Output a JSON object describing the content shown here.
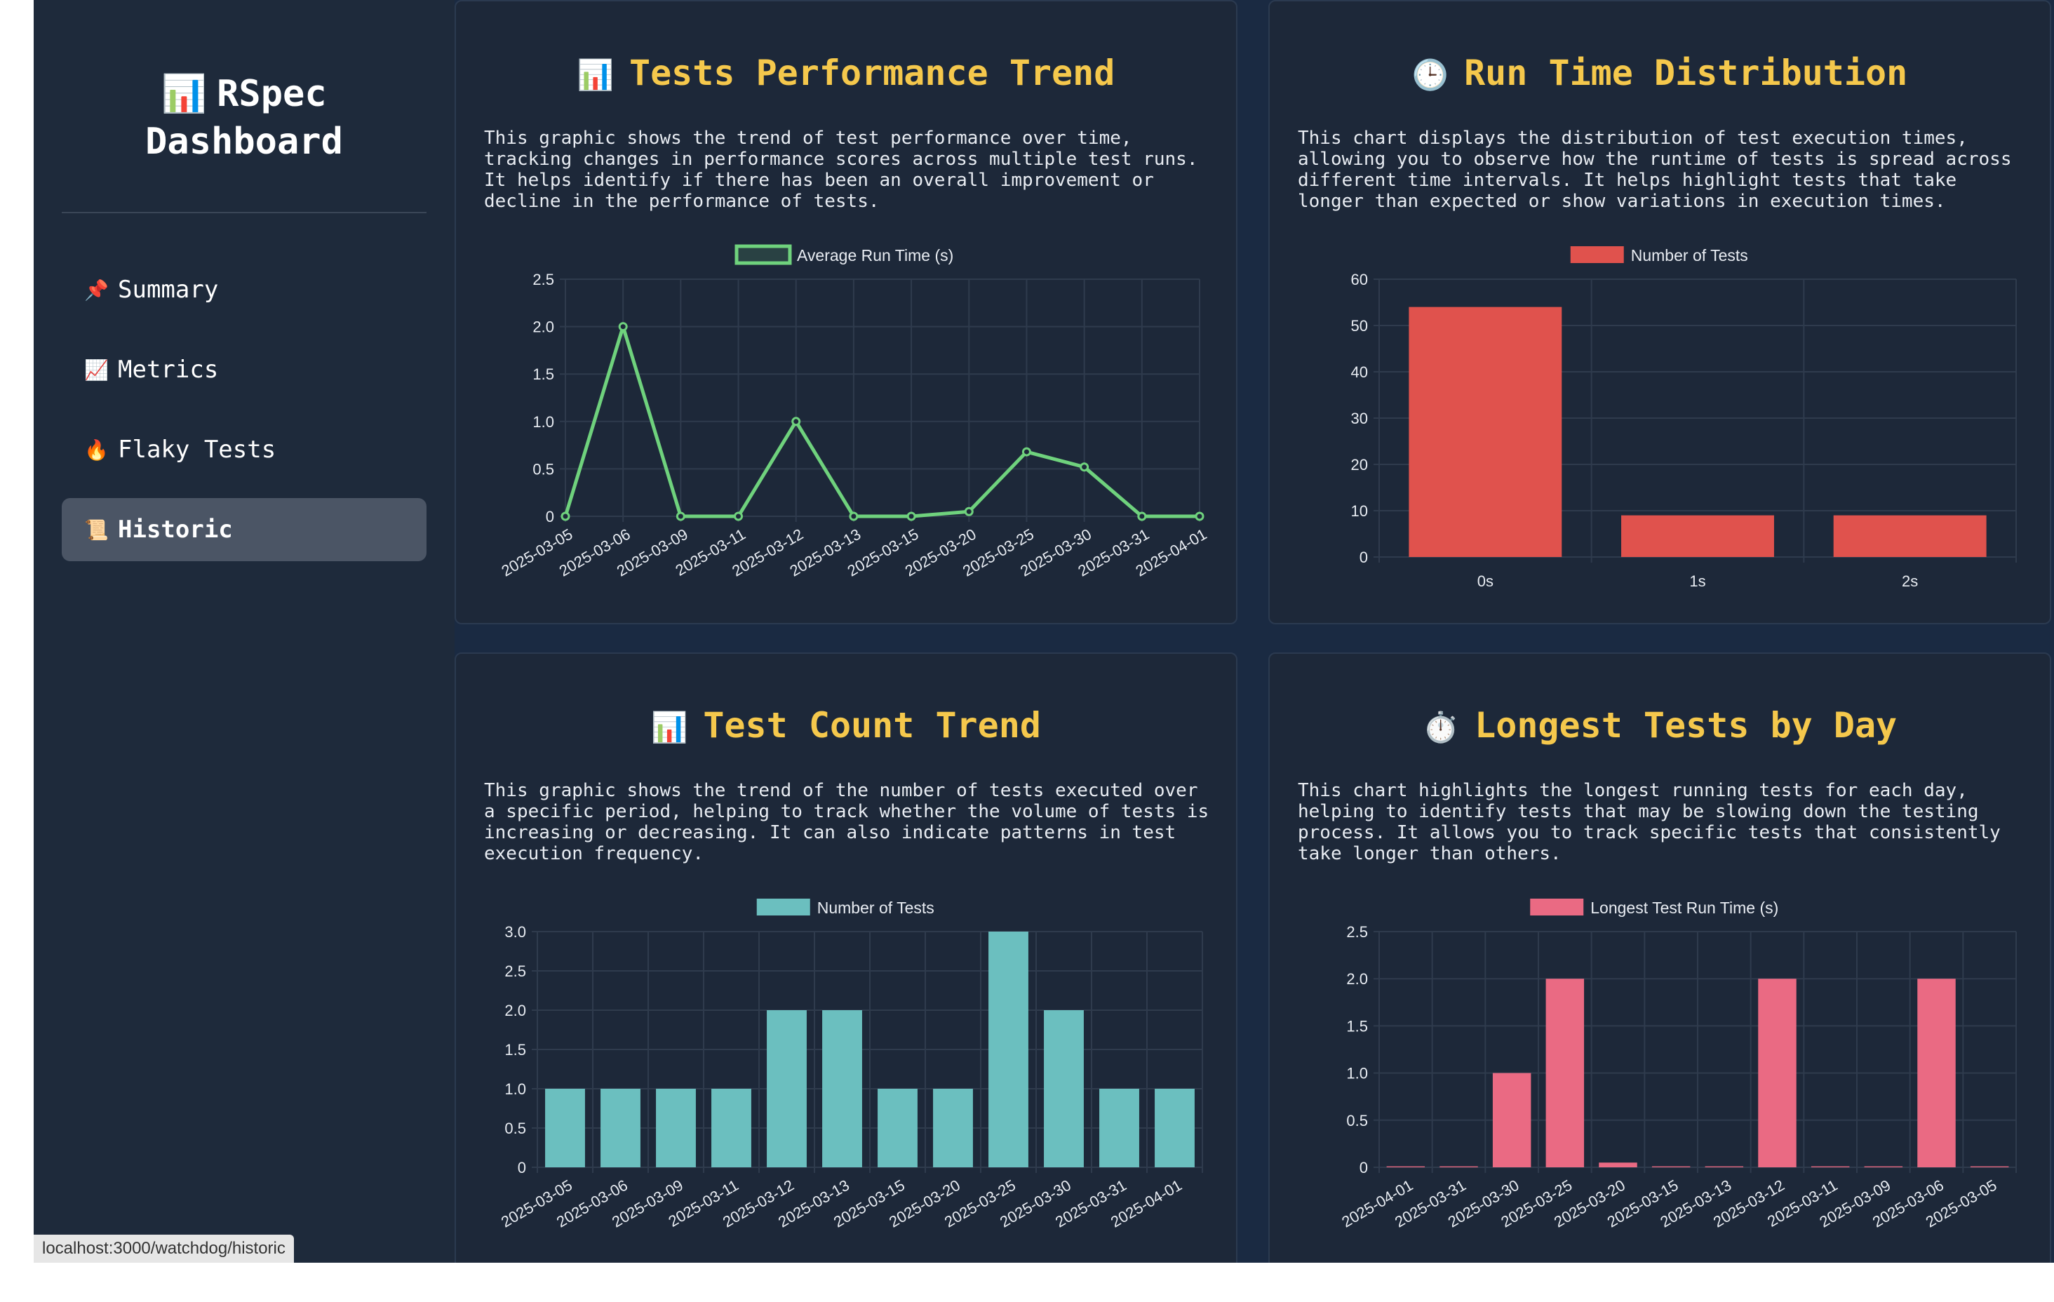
{
  "sidebar": {
    "brand_icon": "📊",
    "brand_line1": "RSpec",
    "brand_line2": "Dashboard",
    "items": [
      {
        "icon": "📌",
        "label": "Summary"
      },
      {
        "icon": "📈",
        "label": "Metrics"
      },
      {
        "icon": "🔥",
        "label": "Flaky Tests"
      },
      {
        "icon": "📜",
        "label": "Historic",
        "active": true
      }
    ]
  },
  "cards": {
    "perf": {
      "icon": "📊",
      "title": "Tests Performance Trend",
      "description": "This graphic shows the trend of test performance over time,\ntracking changes in performance scores across multiple test runs.\nIt helps identify if there has been an overall improvement or\ndecline in the performance of tests."
    },
    "dist": {
      "icon": "🕒",
      "title": "Run Time Distribution",
      "description": "This chart displays the distribution of test execution times,\nallowing you to observe how the runtime of tests is spread across\ndifferent time intervals. It helps highlight tests that take\nlonger than expected or show variations in execution times."
    },
    "count": {
      "icon": "📊",
      "title": "Test Count Trend",
      "description": "This graphic shows the trend of the number of tests executed over\na specific period, helping to track whether the volume of tests is\nincreasing or decreasing. It can also indicate patterns in test\nexecution frequency."
    },
    "longest": {
      "icon": "⏱️",
      "title": "Longest Tests by Day",
      "description": "This chart highlights the longest running tests for each day,\nhelping to identify tests that may be slowing down the testing\nprocess. It allows you to track specific tests that consistently\ntake longer than others."
    }
  },
  "status_url": "localhost:3000/watchdog/historic",
  "chart_data": [
    {
      "id": "perf",
      "type": "line",
      "categories": [
        "2025-03-05",
        "2025-03-06",
        "2025-03-09",
        "2025-03-11",
        "2025-03-12",
        "2025-03-13",
        "2025-03-15",
        "2025-03-20",
        "2025-03-25",
        "2025-03-30",
        "2025-03-31",
        "2025-04-01"
      ],
      "series": [
        {
          "name": "Average Run Time (s)",
          "values": [
            0,
            2.0,
            0,
            0,
            1.0,
            0,
            0,
            0.05,
            0.68,
            0.52,
            0,
            0
          ],
          "color": "#6fd27d"
        }
      ],
      "ylim": [
        0,
        2.5
      ],
      "yticks": [
        "0",
        "0.5",
        "1.0",
        "1.5",
        "2.0",
        "2.5"
      ],
      "legend": "top-center",
      "grid": true
    },
    {
      "id": "dist",
      "type": "bar",
      "categories": [
        "0s",
        "1s",
        "2s"
      ],
      "series": [
        {
          "name": "Number of Tests",
          "values": [
            54,
            9,
            9
          ],
          "color": "#e0524d"
        }
      ],
      "ylim": [
        0,
        60
      ],
      "yticks": [
        "0",
        "10",
        "20",
        "30",
        "40",
        "50",
        "60"
      ],
      "legend": "top-center",
      "grid": true
    },
    {
      "id": "count",
      "type": "bar",
      "categories": [
        "2025-03-05",
        "2025-03-06",
        "2025-03-09",
        "2025-03-11",
        "2025-03-12",
        "2025-03-13",
        "2025-03-15",
        "2025-03-20",
        "2025-03-25",
        "2025-03-30",
        "2025-03-31",
        "2025-04-01"
      ],
      "series": [
        {
          "name": "Number of Tests",
          "values": [
            1,
            1,
            1,
            1,
            2,
            2,
            1,
            1,
            3,
            2,
            1,
            1
          ],
          "color": "#6bbfbf"
        }
      ],
      "ylim": [
        0,
        3.0
      ],
      "yticks": [
        "0",
        "0.5",
        "1.0",
        "1.5",
        "2.0",
        "2.5",
        "3.0"
      ],
      "legend": "top-center",
      "grid": true
    },
    {
      "id": "longest",
      "type": "bar",
      "categories": [
        "2025-04-01",
        "2025-03-31",
        "2025-03-30",
        "2025-03-25",
        "2025-03-20",
        "2025-03-15",
        "2025-03-13",
        "2025-03-12",
        "2025-03-11",
        "2025-03-09",
        "2025-03-06",
        "2025-03-05"
      ],
      "series": [
        {
          "name": "Longest Test Run Time (s)",
          "values": [
            0.01,
            0.01,
            1.0,
            2.0,
            0.05,
            0.01,
            0.01,
            2.0,
            0.01,
            0.01,
            2.0,
            0.01
          ],
          "color": "#ea6a83"
        }
      ],
      "ylim": [
        0,
        2.5
      ],
      "yticks": [
        "0",
        "0.5",
        "1.0",
        "1.5",
        "2.0",
        "2.5"
      ],
      "legend": "top-center",
      "grid": true
    }
  ]
}
